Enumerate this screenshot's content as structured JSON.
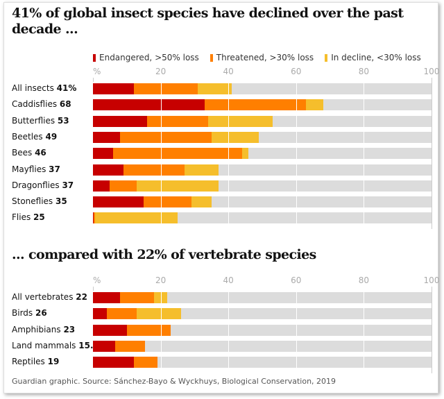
{
  "colors": {
    "endangered": "#c70000",
    "threatened": "#ff7f00",
    "in_decline": "#f5be2c",
    "track": "#dcdcdc"
  },
  "chart_data": [
    {
      "type": "bar",
      "stacked": true,
      "orientation": "horizontal",
      "title": "41% of global insect species have declined over the past decade ...",
      "xlim": [
        0,
        100
      ],
      "x_ticks": [
        "%",
        "20",
        "40",
        "60",
        "80",
        "100"
      ],
      "legend": [
        "Endangered, >50% loss",
        "Threatened, >30% loss",
        "In decline, <30% loss"
      ],
      "legend_placement": "top",
      "categories": [
        {
          "name": "All insects",
          "label": "41%",
          "endangered": 12,
          "threatened": 19,
          "in_decline": 10
        },
        {
          "name": "Caddisflies",
          "label": "68",
          "endangered": 33,
          "threatened": 30,
          "in_decline": 5
        },
        {
          "name": "Butterflies",
          "label": "53",
          "endangered": 16,
          "threatened": 18,
          "in_decline": 19
        },
        {
          "name": "Beetles",
          "label": "49",
          "endangered": 8,
          "threatened": 27,
          "in_decline": 14
        },
        {
          "name": "Bees",
          "label": "46",
          "endangered": 6,
          "threatened": 38,
          "in_decline": 2
        },
        {
          "name": "Mayflies",
          "label": "37",
          "endangered": 9,
          "threatened": 18,
          "in_decline": 10
        },
        {
          "name": "Dragonflies",
          "label": "37",
          "endangered": 5,
          "threatened": 8,
          "in_decline": 24
        },
        {
          "name": "Stoneflies",
          "label": "35",
          "endangered": 15,
          "threatened": 14,
          "in_decline": 6
        },
        {
          "name": "Flies",
          "label": "25",
          "endangered": 0.3,
          "threatened": 0.4,
          "in_decline": 24.3
        }
      ]
    },
    {
      "type": "bar",
      "stacked": true,
      "orientation": "horizontal",
      "title": "... compared with 22% of vertebrate species",
      "xlim": [
        0,
        100
      ],
      "x_ticks": [
        "%",
        "20",
        "40",
        "60",
        "80",
        "100"
      ],
      "categories": [
        {
          "name": "All vertebrates",
          "label": "22",
          "endangered": 8,
          "threatened": 10,
          "in_decline": 4
        },
        {
          "name": "Birds",
          "label": "26",
          "endangered": 4,
          "threatened": 9,
          "in_decline": 13
        },
        {
          "name": "Amphibians",
          "label": "23",
          "endangered": 10,
          "threatened": 13,
          "in_decline": 0
        },
        {
          "name": "Land mammals",
          "label": "15.4",
          "endangered": 6.5,
          "threatened": 8.9,
          "in_decline": 0
        },
        {
          "name": "Reptiles",
          "label": "19",
          "endangered": 12,
          "threatened": 7,
          "in_decline": 0
        }
      ]
    }
  ],
  "source": "Guardian graphic. Source: Sánchez-Bayo & Wyckhuys, Biological Conservation, 2019"
}
